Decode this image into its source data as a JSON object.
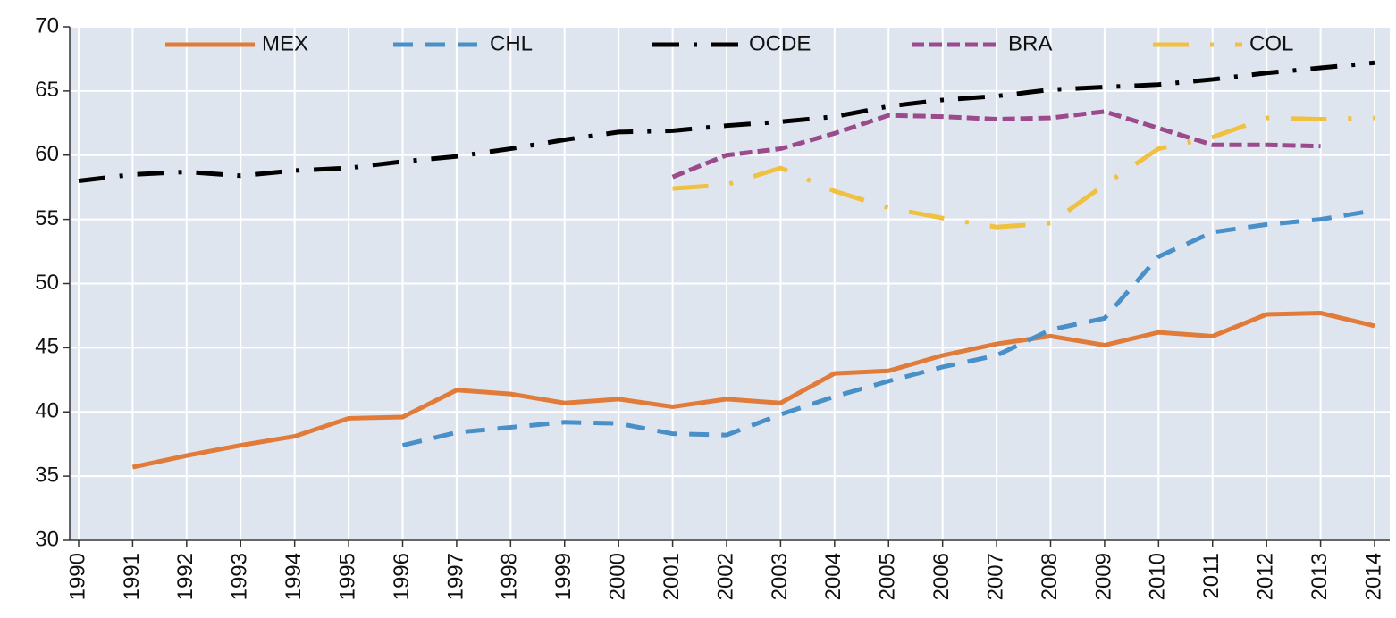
{
  "chart_data": {
    "type": "line",
    "categories": [
      "1990",
      "1991",
      "1992",
      "1993",
      "1994",
      "1995",
      "1996",
      "1997",
      "1998",
      "1999",
      "2000",
      "2001",
      "2002",
      "2003",
      "2004",
      "2005",
      "2006",
      "2007",
      "2008",
      "2009",
      "2010",
      "2011",
      "2012",
      "2013",
      "2014"
    ],
    "series": [
      {
        "name": "MEX",
        "color": "#e07b39",
        "style": "solid",
        "values": [
          null,
          35.7,
          36.6,
          37.4,
          38.1,
          39.5,
          39.6,
          41.7,
          41.4,
          40.7,
          41.0,
          40.4,
          41.0,
          40.7,
          43.0,
          43.2,
          44.4,
          45.3,
          45.9,
          45.2,
          46.2,
          45.9,
          47.6,
          47.7,
          46.7
        ]
      },
      {
        "name": "CHL",
        "color": "#4a90c8",
        "style": "dashed",
        "values": [
          null,
          null,
          null,
          null,
          null,
          null,
          37.4,
          38.4,
          38.8,
          39.2,
          39.1,
          38.3,
          38.2,
          39.8,
          41.2,
          42.4,
          43.5,
          44.4,
          46.4,
          47.3,
          52.1,
          54.0,
          54.6,
          55.0,
          55.7
        ]
      },
      {
        "name": "OCDE",
        "color": "#000000",
        "style": "dashdot",
        "values": [
          58.0,
          58.5,
          58.7,
          58.4,
          58.8,
          59.0,
          59.5,
          59.9,
          60.5,
          61.2,
          61.8,
          61.9,
          62.3,
          62.6,
          63.0,
          63.8,
          64.3,
          64.6,
          65.1,
          65.3,
          65.5,
          65.9,
          66.4,
          66.8,
          67.2
        ]
      },
      {
        "name": "BRA",
        "color": "#9b4a8c",
        "style": "shortdash",
        "values": [
          null,
          null,
          null,
          null,
          null,
          null,
          null,
          null,
          null,
          null,
          null,
          58.3,
          60.0,
          60.5,
          61.7,
          63.1,
          63.0,
          62.8,
          62.9,
          63.4,
          62.1,
          60.8,
          60.8,
          60.7,
          null
        ]
      },
      {
        "name": "COL",
        "color": "#f0c040",
        "style": "longdashdot",
        "values": [
          null,
          null,
          null,
          null,
          null,
          null,
          null,
          null,
          null,
          null,
          null,
          57.4,
          57.7,
          59.0,
          57.2,
          55.9,
          55.1,
          54.4,
          54.7,
          57.7,
          60.5,
          61.4,
          62.9,
          62.8,
          62.9
        ]
      }
    ],
    "ylim": [
      30,
      70
    ],
    "yticks": [
      30,
      35,
      40,
      45,
      50,
      55,
      60,
      65,
      70
    ],
    "grid": true,
    "legend": "top"
  }
}
